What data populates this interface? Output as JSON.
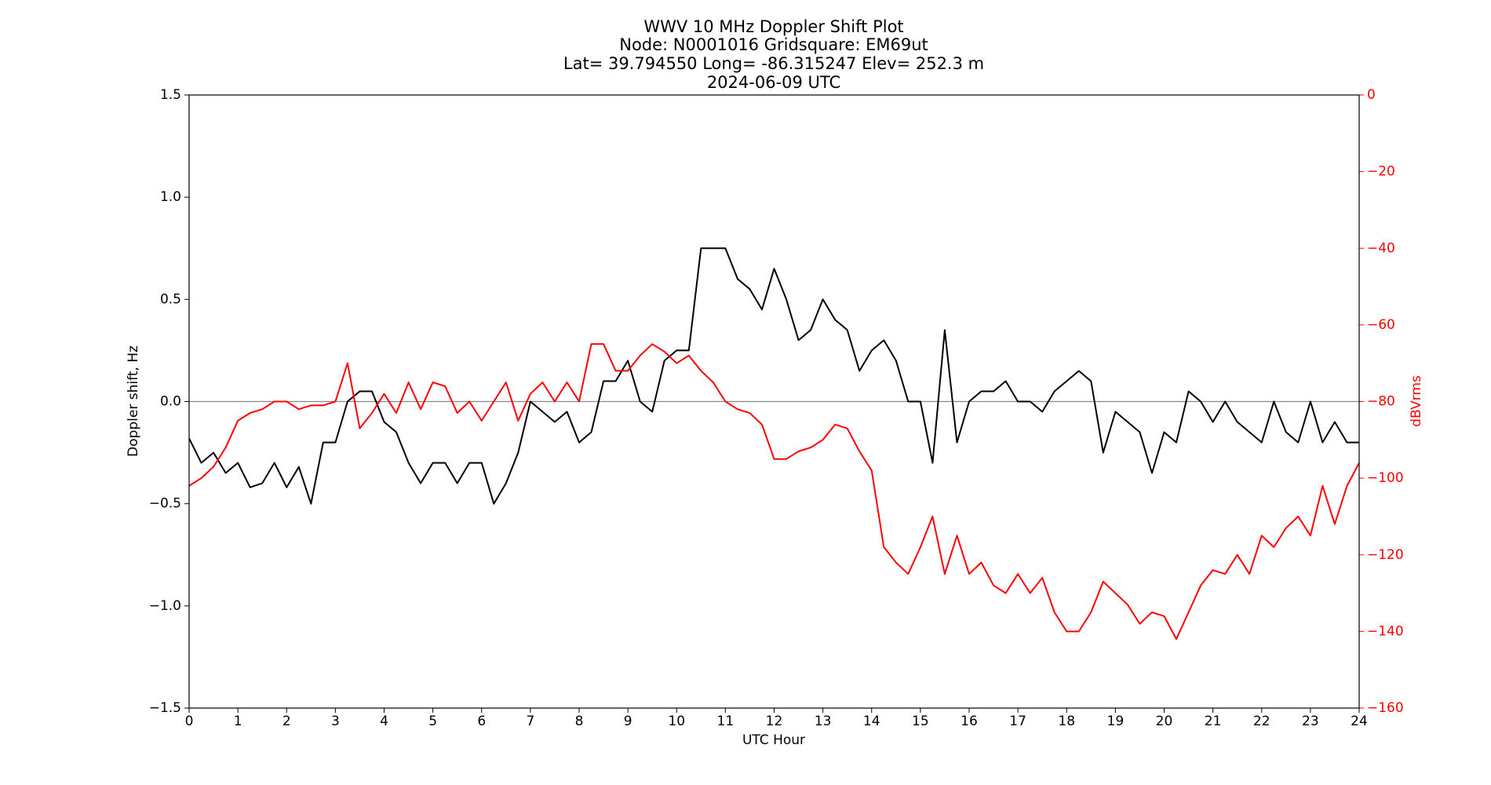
{
  "chart_data": {
    "type": "line",
    "title_lines": [
      "WWV 10 MHz Doppler Shift Plot",
      "Node:  N0001016     Gridsquare:  EM69ut",
      "Lat= 39.794550    Long= -86.315247    Elev= 252.3 m",
      "2024-06-09  UTC"
    ],
    "xlabel": "UTC Hour",
    "ylabel": "Doppler shift, Hz",
    "y2label": "dBVrms",
    "xlim": [
      0,
      24
    ],
    "xticks": [
      0,
      1,
      2,
      3,
      4,
      5,
      6,
      7,
      8,
      9,
      10,
      11,
      12,
      13,
      14,
      15,
      16,
      17,
      18,
      19,
      20,
      21,
      22,
      23,
      24
    ],
    "ylim": [
      -1.5,
      1.5
    ],
    "yticks": [
      {
        "value": -1.5,
        "label": "−1.5"
      },
      {
        "value": -1.0,
        "label": "−1.0"
      },
      {
        "value": -0.5,
        "label": "−0.5"
      },
      {
        "value": 0,
        "label": "0.0"
      },
      0.5,
      {
        "value": 1.0,
        "label": "1.0"
      },
      1.5
    ],
    "y2lim": [
      -160,
      0
    ],
    "y2ticks": [
      {
        "value": -160,
        "label": "−160"
      },
      {
        "value": -140,
        "label": "−140"
      },
      {
        "value": -120,
        "label": "−120"
      },
      {
        "value": -100,
        "label": "−100"
      },
      {
        "value": -80,
        "label": "−80"
      },
      {
        "value": -60,
        "label": "−60"
      },
      {
        "value": -40,
        "label": "−40"
      },
      {
        "value": -20,
        "label": "−20"
      },
      0
    ],
    "y2color": "#ff0000",
    "hline": 0,
    "hline_color": "#888888",
    "x": [
      0,
      0.25,
      0.5,
      0.75,
      1,
      1.25,
      1.5,
      1.75,
      2,
      2.25,
      2.5,
      2.75,
      3,
      3.25,
      3.5,
      3.75,
      4,
      4.25,
      4.5,
      4.75,
      5,
      5.25,
      5.5,
      5.75,
      6,
      6.25,
      6.5,
      6.75,
      7,
      7.25,
      7.5,
      7.75,
      8,
      8.25,
      8.5,
      8.75,
      9,
      9.25,
      9.5,
      9.75,
      10,
      10.25,
      10.5,
      10.75,
      11,
      11.25,
      11.5,
      11.75,
      12,
      12.25,
      12.5,
      12.75,
      13,
      13.25,
      13.5,
      13.75,
      14,
      14.25,
      14.5,
      14.75,
      15,
      15.25,
      15.5,
      15.75,
      16,
      16.25,
      16.5,
      16.75,
      17,
      17.25,
      17.5,
      17.75,
      18,
      18.25,
      18.5,
      18.75,
      19,
      19.25,
      19.5,
      19.75,
      20,
      20.25,
      20.5,
      20.75,
      21,
      21.25,
      21.5,
      21.75,
      22,
      22.25,
      22.5,
      22.75,
      23,
      23.25,
      23.5,
      23.75,
      24
    ],
    "series": [
      {
        "color": "#000000",
        "axis": "y",
        "values": [
          -0.18,
          -0.3,
          -0.25,
          -0.35,
          -0.3,
          -0.42,
          -0.4,
          -0.3,
          -0.42,
          -0.32,
          -0.5,
          -0.2,
          -0.2,
          0.0,
          0.05,
          0.05,
          -0.1,
          -0.15,
          -0.3,
          -0.4,
          -0.3,
          -0.3,
          -0.4,
          -0.3,
          -0.3,
          -0.5,
          -0.4,
          -0.25,
          0.0,
          -0.05,
          -0.1,
          -0.05,
          -0.2,
          -0.15,
          0.1,
          0.1,
          0.2,
          0.0,
          -0.05,
          0.2,
          0.25,
          0.25,
          0.75,
          0.75,
          0.75,
          0.6,
          0.55,
          0.45,
          0.65,
          0.5,
          0.3,
          0.35,
          0.5,
          0.4,
          0.35,
          0.15,
          0.25,
          0.3,
          0.2,
          0.0,
          0.0,
          -0.3,
          0.35,
          -0.2,
          0.0,
          0.05,
          0.05,
          0.1,
          0.0,
          0.0,
          -0.05,
          0.05,
          0.1,
          0.15,
          0.1,
          -0.25,
          -0.05,
          -0.1,
          -0.15,
          -0.35,
          -0.15,
          -0.2,
          0.05,
          0.0,
          -0.1,
          0.0,
          -0.1,
          -0.15,
          -0.2,
          0.0,
          -0.15,
          -0.2,
          0.0,
          -0.2,
          -0.1,
          -0.2,
          -0.2
        ]
      },
      {
        "color": "#ff0000",
        "axis": "y2",
        "values": [
          -102,
          -100,
          -97,
          -92,
          -85,
          -83,
          -82,
          -80,
          -80,
          -82,
          -81,
          -81,
          -80,
          -70,
          -87,
          -83,
          -78,
          -83,
          -75,
          -82,
          -75,
          -76,
          -83,
          -80,
          -85,
          -80,
          -75,
          -85,
          -78,
          -75,
          -80,
          -75,
          -80,
          -65,
          -65,
          -72,
          -72,
          -68,
          -65,
          -67,
          -70,
          -68,
          -72,
          -75,
          -80,
          -82,
          -83,
          -86,
          -95,
          -95,
          -93,
          -92,
          -90,
          -86,
          -87,
          -93,
          -98,
          -118,
          -122,
          -125,
          -118,
          -110,
          -125,
          -115,
          -125,
          -122,
          -128,
          -130,
          -125,
          -130,
          -126,
          -135,
          -140,
          -140,
          -135,
          -127,
          -130,
          -133,
          -138,
          -135,
          -136,
          -142,
          -135,
          -128,
          -124,
          -125,
          -120,
          -125,
          -115,
          -118,
          -113,
          -110,
          -115,
          -102,
          -112,
          -102,
          -96
        ]
      }
    ]
  }
}
